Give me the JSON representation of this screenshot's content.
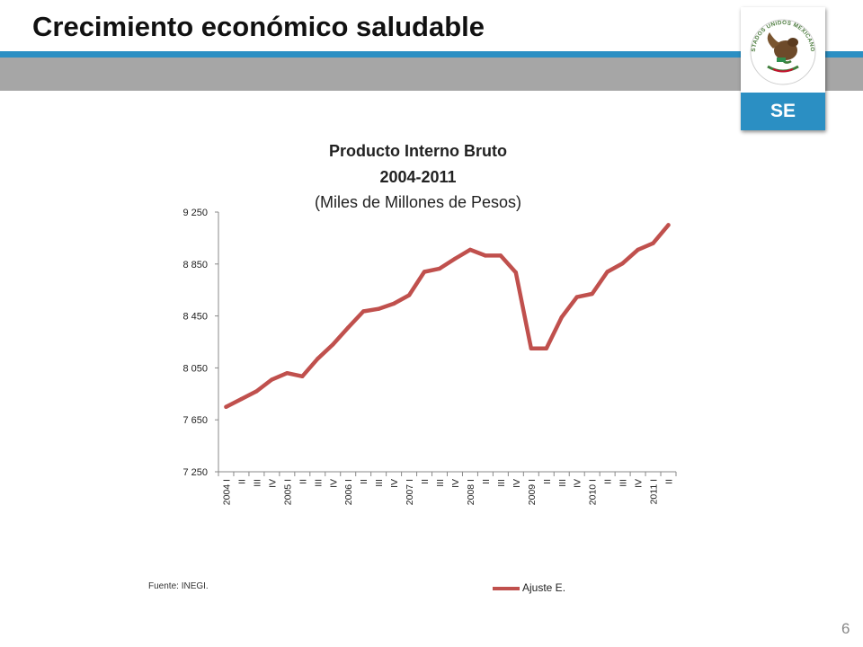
{
  "slide": {
    "title": "Crecimiento económico saludable",
    "page_number": "6",
    "source": "Fuente: INEGI.",
    "logo": {
      "seal_text": "ESTADOS UNIDOS MEXICANOS",
      "label": "SE"
    }
  },
  "colors": {
    "accent_blue": "#2b8fc3",
    "band_gray": "#a6a6a6",
    "series_line": "#c0504d",
    "axis": "#888888"
  },
  "chart_data": {
    "type": "line",
    "title": "Producto Interno Bruto",
    "subtitle": "2004-2011",
    "subtitle2": "(Miles de Millones de Pesos)",
    "ylim": [
      7250,
      9250
    ],
    "yticks": [
      "7 250",
      "7 650",
      "8 050",
      "8 450",
      "8 850",
      "9 250"
    ],
    "ytick_values": [
      7250,
      7650,
      8050,
      8450,
      8850,
      9250
    ],
    "categories": [
      "2004 I",
      "II",
      "III",
      "IV",
      "2005 I",
      "II",
      "III",
      "IV",
      "2006 I",
      "II",
      "III",
      "IV",
      "2007 I",
      "II",
      "III",
      "IV",
      "2008 I",
      "II",
      "III",
      "IV",
      "2009 I",
      "II",
      "III",
      "IV",
      "2010 I",
      "II",
      "III",
      "IV",
      "2011 I",
      "II"
    ],
    "grid": false,
    "legend": "bottom-right",
    "series": [
      {
        "name": "Ajuste E.",
        "values": [
          7750,
          7810,
          7870,
          7960,
          8010,
          7985,
          8120,
          8230,
          8360,
          8485,
          8505,
          8545,
          8610,
          8790,
          8815,
          8890,
          8960,
          8915,
          8915,
          8785,
          8200,
          8200,
          8440,
          8595,
          8620,
          8790,
          8855,
          8960,
          9010,
          9150
        ]
      }
    ]
  }
}
